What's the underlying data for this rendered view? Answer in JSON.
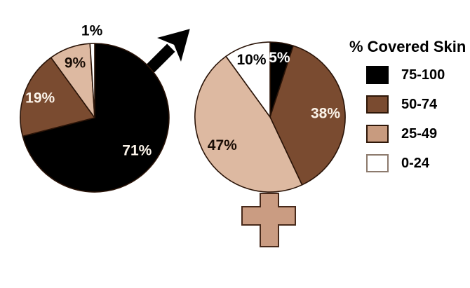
{
  "figure": {
    "background": "#FFFFFF",
    "description_title": "% Covered Skin"
  },
  "colors": {
    "background": "#FFFFFF",
    "cat_75_100": "#000000",
    "cat_50_74": "#7A4B30",
    "cat_25_49": "#DDB9A1",
    "cat_0_24": "#FFFFFF",
    "slice_outline": "#2A1408",
    "symbol_black": "#000000",
    "symbol_tan": "#CA9C82",
    "symbol_outline": "#47291A",
    "legend_tan_swatch": "#C89B7F",
    "white_swatch_border": "#8C7A6D",
    "dark_swatch_border": "#2E1708"
  },
  "legend": {
    "title": "% Covered Skin",
    "position": "right",
    "items": [
      {
        "label": "75-100",
        "color": "#000000",
        "border": "#000000"
      },
      {
        "label": "50-74",
        "color": "#7A4B30",
        "border": "#2E1708"
      },
      {
        "label": "25-49",
        "color": "#C89B7F",
        "border": "#2E1708"
      },
      {
        "label": "0-24",
        "color": "#FFFFFF",
        "border": "#8C7A6D"
      }
    ]
  },
  "chart_data": [
    {
      "type": "pie",
      "name": "male",
      "gender_symbol": "male",
      "start_angle_deg": 0,
      "direction": "clockwise",
      "center": [
        135,
        168
      ],
      "radius": 106,
      "categories": [
        "75-100",
        "50-74",
        "25-49",
        "0-24"
      ],
      "slices": [
        {
          "category": "75-100",
          "value": 71,
          "label": "71%",
          "color": "#000000",
          "label_color": "#FBF3E9",
          "label_r": 0.72
        },
        {
          "category": "50-74",
          "value": 19,
          "label": "19%",
          "color": "#7A4B30",
          "label_color": "#FBF3E9",
          "label_r": 0.78
        },
        {
          "category": "25-49",
          "value": 9,
          "label": "9%",
          "color": "#DDB9A1",
          "label_color": "#1A0E06",
          "label_r": 0.78
        },
        {
          "category": "0-24",
          "value": 1,
          "label": "1%",
          "color": "#FFFFFF",
          "label_color": "#000000",
          "label_r": 1.17,
          "outside": true
        }
      ]
    },
    {
      "type": "pie",
      "name": "female",
      "gender_symbol": "female",
      "start_angle_deg": 0,
      "direction": "clockwise",
      "center": [
        385,
        167
      ],
      "radius": 107,
      "categories": [
        "75-100",
        "50-74",
        "25-49",
        "0-24"
      ],
      "slices": [
        {
          "category": "75-100",
          "value": 5,
          "label": "5%",
          "color": "#000000",
          "label_color": "#FFFFFF",
          "label_r": 0.8
        },
        {
          "category": "50-74",
          "value": 38,
          "label": "38%",
          "color": "#7A4B30",
          "label_color": "#FBF3E9",
          "label_r": 0.74
        },
        {
          "category": "25-49",
          "value": 47,
          "label": "47%",
          "color": "#DDB9A1",
          "label_color": "#1A0E06",
          "label_r": 0.74
        },
        {
          "category": "0-24",
          "value": 10,
          "label": "10%",
          "color": "#FFFFFF",
          "label_color": "#000000",
          "label_r": 0.8
        }
      ]
    }
  ]
}
